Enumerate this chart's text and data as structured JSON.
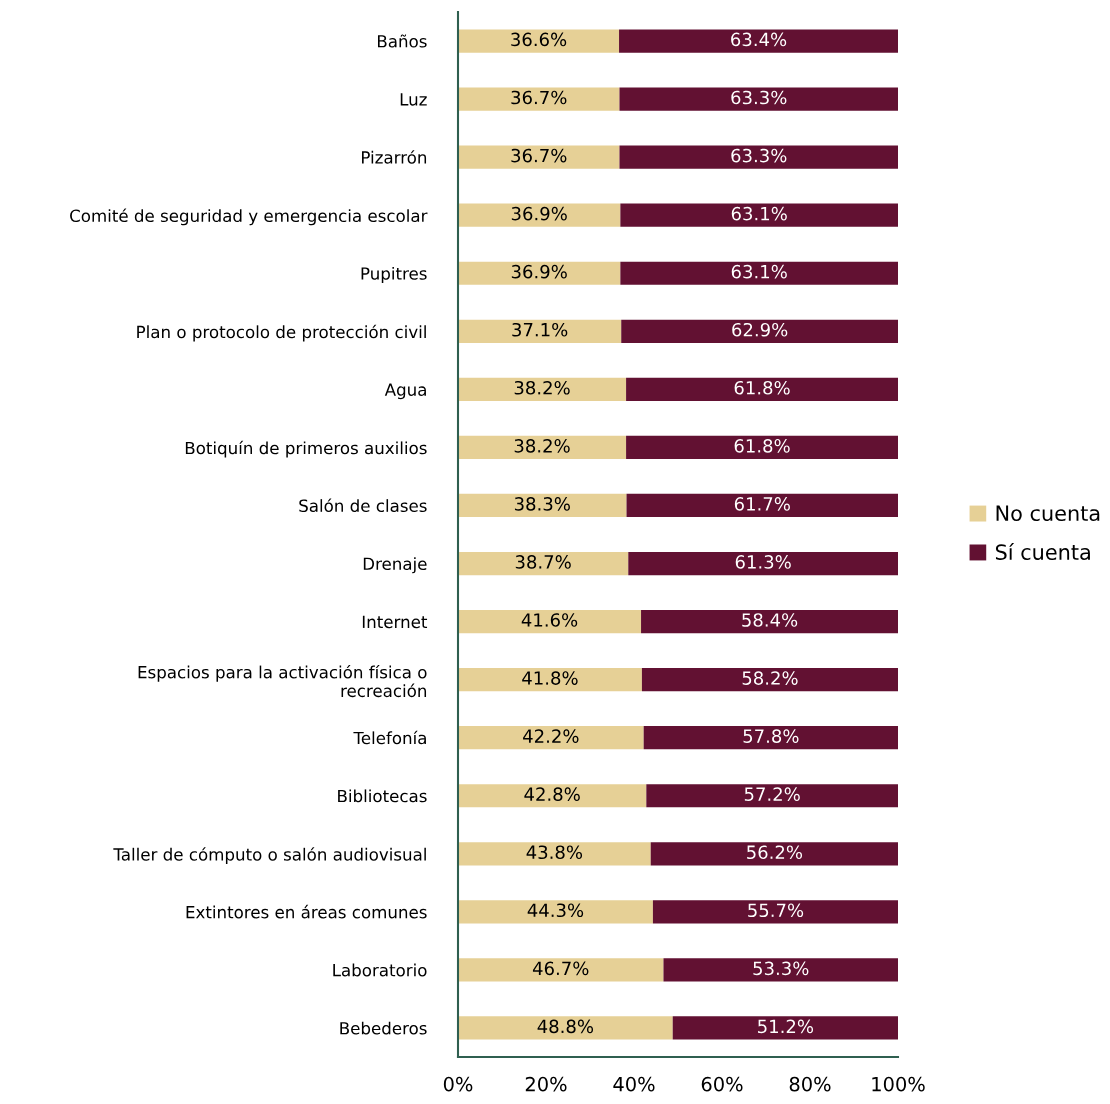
{
  "chart_data": {
    "type": "bar",
    "orientation": "horizontal",
    "stacked": true,
    "categories": [
      "Baños",
      "Luz",
      "Pizarrón",
      "Comité de seguridad y emergencia escolar",
      "Pupitres",
      "Plan o protocolo de protección civil",
      "Agua",
      "Botiquín de primeros auxilios",
      "Salón de clases",
      "Drenaje",
      "Internet",
      "Espacios para la activación física o\nrecreación",
      "Telefonía",
      "Bibliotecas",
      "Taller de cómputo o salón audiovisual",
      "Extintores en áreas comunes",
      "Laboratorio",
      "Bebederos"
    ],
    "series": [
      {
        "name": "No cuenta",
        "color": "#e6d096",
        "values": [
          36.6,
          36.7,
          36.7,
          36.9,
          36.9,
          37.1,
          38.2,
          38.2,
          38.3,
          38.7,
          41.6,
          41.8,
          42.2,
          42.8,
          43.8,
          44.3,
          46.7,
          48.8
        ],
        "value_labels": [
          "36.6%",
          "36.7%",
          "36.7%",
          "36.9%",
          "36.9%",
          "37.1%",
          "38.2%",
          "38.2%",
          "38.3%",
          "38.7%",
          "41.6%",
          "41.8%",
          "42.2%",
          "42.8%",
          "43.8%",
          "44.3%",
          "46.7%",
          "48.8%"
        ]
      },
      {
        "name": "Sí cuenta",
        "color": "#621132",
        "values": [
          63.4,
          63.3,
          63.3,
          63.1,
          63.1,
          62.9,
          61.8,
          61.8,
          61.7,
          61.3,
          58.4,
          58.2,
          57.8,
          57.2,
          56.2,
          55.7,
          53.3,
          51.2
        ],
        "value_labels": [
          "63.4%",
          "63.3%",
          "63.3%",
          "63.1%",
          "63.1%",
          "62.9%",
          "61.8%",
          "61.8%",
          "61.7%",
          "61.3%",
          "58.4%",
          "58.2%",
          "57.8%",
          "57.2%",
          "56.2%",
          "55.7%",
          "53.3%",
          "51.2%"
        ]
      }
    ],
    "xlim": [
      0,
      100
    ],
    "xticks": [
      {
        "value": 0,
        "label": "0%"
      },
      {
        "value": 20,
        "label": "20%"
      },
      {
        "value": 40,
        "label": "40%"
      },
      {
        "value": 60,
        "label": "60%"
      },
      {
        "value": 80,
        "label": "80%"
      },
      {
        "value": 100,
        "label": "100%"
      }
    ],
    "legend": "right",
    "grid": false
  }
}
